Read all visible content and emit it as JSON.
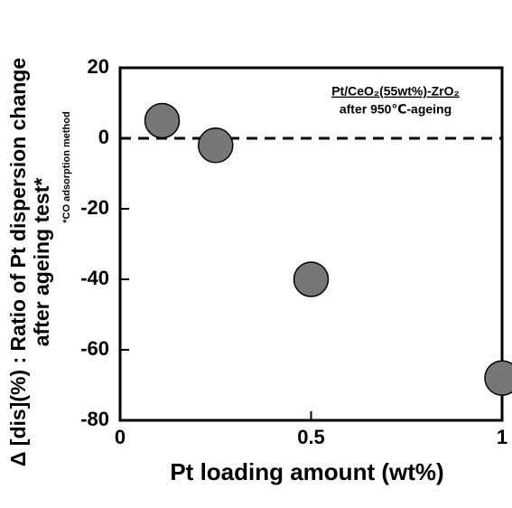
{
  "chart_data": {
    "type": "scatter",
    "x_label": "Pt loading amount (wt%)",
    "y_label": [
      "Δ [dis](%) : Ratio of Pt dispersion change",
      "after ageing test*"
    ],
    "note": "*CO adsorption method",
    "annotation": [
      "Pt/CeO₂(55wt%)-ZrO₂",
      "after 950℃-ageing"
    ],
    "x": [
      0.11,
      0.25,
      0.5,
      1
    ],
    "values": [
      5,
      -2,
      -40,
      -68
    ],
    "color": "#777777",
    "xlim": [
      0,
      1
    ],
    "xticks": [
      0,
      0.5,
      1
    ],
    "ylim": [
      -80,
      20
    ],
    "yticks": [
      20,
      0,
      -20,
      -40,
      -60,
      -80
    ],
    "hline": 0
  }
}
